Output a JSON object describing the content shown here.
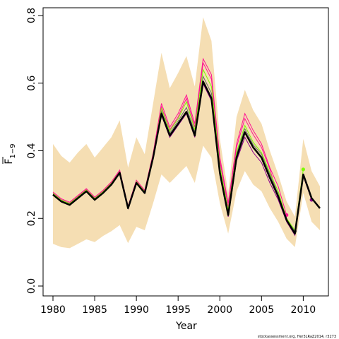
{
  "chart_data": {
    "type": "line",
    "xlabel": "Year",
    "ylabel": "F",
    "ylabel_sub": "1−9",
    "xlim": [
      1980,
      2012
    ],
    "ylim": [
      0.0,
      0.8
    ],
    "xticks": [
      1980,
      1985,
      1990,
      1995,
      2000,
      2005,
      2010
    ],
    "yticks": [
      0.0,
      0.2,
      0.4,
      0.6,
      0.8
    ],
    "ytick_labels": [
      "0.0",
      "0.2",
      "0.4",
      "0.6",
      "0.8"
    ],
    "credit": "stockassessment.org, Her3LRaZ2014, r3273",
    "colors": {
      "band": "#f5deb3",
      "main": "#000000",
      "retro": [
        "#ff1493",
        "#7cfc00",
        "#8b008b",
        "#696969",
        "#ff1493"
      ]
    },
    "band": {
      "x": [
        1980,
        1981,
        1982,
        1983,
        1984,
        1985,
        1986,
        1987,
        1988,
        1989,
        1990,
        1991,
        1992,
        1993,
        1994,
        1995,
        1996,
        1997,
        1998,
        1999,
        2000,
        2001,
        2002,
        2003,
        2004,
        2005,
        2006,
        2007,
        2008,
        2009,
        2010,
        2011,
        2012
      ],
      "upper": [
        0.42,
        0.385,
        0.365,
        0.395,
        0.42,
        0.38,
        0.41,
        0.44,
        0.49,
        0.35,
        0.44,
        0.39,
        0.54,
        0.69,
        0.585,
        0.63,
        0.68,
        0.59,
        0.795,
        0.725,
        0.435,
        0.275,
        0.5,
        0.58,
        0.52,
        0.48,
        0.4,
        0.33,
        0.25,
        0.205,
        0.435,
        0.34,
        0.295
      ],
      "lower": [
        0.125,
        0.115,
        0.112,
        0.125,
        0.138,
        0.13,
        0.148,
        0.162,
        0.18,
        0.127,
        0.175,
        0.165,
        0.245,
        0.33,
        0.305,
        0.33,
        0.355,
        0.305,
        0.415,
        0.38,
        0.245,
        0.155,
        0.28,
        0.34,
        0.3,
        0.28,
        0.23,
        0.19,
        0.14,
        0.115,
        0.275,
        0.19,
        0.165
      ]
    },
    "series": [
      {
        "x": [
          1980,
          1981,
          1982,
          1983,
          1984,
          1985,
          1986,
          1987,
          1988,
          1989,
          1990,
          1991,
          1992,
          1993,
          1994,
          1995,
          1996,
          1997,
          1998,
          1999,
          2000,
          2001,
          2002,
          2003,
          2004,
          2005,
          2006,
          2007,
          2008,
          2009,
          2010,
          2011,
          2012
        ],
        "values": [
          0.27,
          0.25,
          0.24,
          0.26,
          0.28,
          0.255,
          0.275,
          0.3,
          0.335,
          0.23,
          0.305,
          0.275,
          0.38,
          0.51,
          0.445,
          0.48,
          0.515,
          0.445,
          0.605,
          0.555,
          0.335,
          0.21,
          0.38,
          0.455,
          0.41,
          0.38,
          0.32,
          0.265,
          0.195,
          0.155,
          0.33,
          0.26,
          0.23
        ]
      },
      {
        "x": [
          1980,
          1981,
          1982,
          1983,
          1984,
          1985,
          1986,
          1987,
          1988,
          1989,
          1990,
          1991,
          1992,
          1993,
          1994,
          1995,
          1996,
          1997,
          1998,
          1999,
          2000,
          2001,
          2002,
          2003,
          2004,
          2005,
          2006,
          2007,
          2008
        ],
        "values": [
          0.278,
          0.258,
          0.248,
          0.268,
          0.288,
          0.263,
          0.283,
          0.308,
          0.343,
          0.236,
          0.313,
          0.283,
          0.392,
          0.54,
          0.47,
          0.51,
          0.565,
          0.48,
          0.672,
          0.625,
          0.38,
          0.245,
          0.42,
          0.51,
          0.46,
          0.42,
          0.35,
          0.295,
          0.21
        ],
        "endpoint": true
      },
      {
        "x": [
          1980,
          1981,
          1982,
          1983,
          1984,
          1985,
          1986,
          1987,
          1988,
          1989,
          1990,
          1991,
          1992,
          1993,
          1994,
          1995,
          1996,
          1997,
          1998,
          1999,
          2000,
          2001,
          2002,
          2003,
          2004,
          2005,
          2006,
          2007,
          2008,
          2009,
          2010
        ],
        "values": [
          0.274,
          0.254,
          0.244,
          0.264,
          0.284,
          0.259,
          0.279,
          0.304,
          0.338,
          0.233,
          0.309,
          0.279,
          0.386,
          0.525,
          0.458,
          0.495,
          0.545,
          0.462,
          0.64,
          0.59,
          0.355,
          0.225,
          0.395,
          0.475,
          0.425,
          0.395,
          0.335,
          0.28,
          0.2,
          0.165,
          0.345
        ],
        "endpoint": true
      },
      {
        "x": [
          1980,
          1981,
          1982,
          1983,
          1984,
          1985,
          1986,
          1987,
          1988,
          1989,
          1990,
          1991,
          1992,
          1993,
          1994,
          1995,
          1996,
          1997,
          1998,
          1999,
          2000,
          2001,
          2002,
          2003,
          2004,
          2005,
          2006,
          2007,
          2008,
          2009,
          2010,
          2011
        ],
        "values": [
          0.27,
          0.25,
          0.24,
          0.26,
          0.28,
          0.255,
          0.275,
          0.3,
          0.333,
          0.229,
          0.304,
          0.274,
          0.378,
          0.505,
          0.44,
          0.475,
          0.51,
          0.44,
          0.598,
          0.548,
          0.328,
          0.205,
          0.37,
          0.44,
          0.395,
          0.365,
          0.305,
          0.255,
          0.19,
          0.15,
          0.325,
          0.255
        ],
        "endpoint": true
      },
      {
        "x": [
          1980,
          1981,
          1982,
          1983,
          1984,
          1985,
          1986,
          1987,
          1988,
          1989,
          1990,
          1991,
          1992,
          1993,
          1994,
          1995,
          1996,
          1997,
          1998,
          1999,
          2000,
          2001,
          2002,
          2003,
          2004,
          2005,
          2006,
          2007,
          2008,
          2009
        ],
        "values": [
          0.272,
          0.252,
          0.242,
          0.262,
          0.282,
          0.257,
          0.277,
          0.302,
          0.336,
          0.231,
          0.307,
          0.277,
          0.383,
          0.517,
          0.452,
          0.488,
          0.528,
          0.455,
          0.62,
          0.57,
          0.345,
          0.22,
          0.39,
          0.465,
          0.418,
          0.39,
          0.33,
          0.272,
          0.2,
          0.162
        ],
        "endpoint": true
      },
      {
        "x": [
          1980,
          1981,
          1982,
          1983,
          1984,
          1985,
          1986,
          1987,
          1988,
          1989,
          1990,
          1991,
          1992,
          1993,
          1994,
          1995,
          1996,
          1997,
          1998,
          1999,
          2000,
          2001,
          2002,
          2003,
          2004,
          2005,
          2006,
          2007
        ],
        "values": [
          0.275,
          0.255,
          0.245,
          0.265,
          0.285,
          0.26,
          0.28,
          0.305,
          0.34,
          0.234,
          0.311,
          0.281,
          0.388,
          0.53,
          0.462,
          0.5,
          0.555,
          0.47,
          0.66,
          0.612,
          0.37,
          0.235,
          0.41,
          0.495,
          0.448,
          0.41,
          0.345,
          0.265
        ],
        "endpoint": true
      }
    ]
  }
}
